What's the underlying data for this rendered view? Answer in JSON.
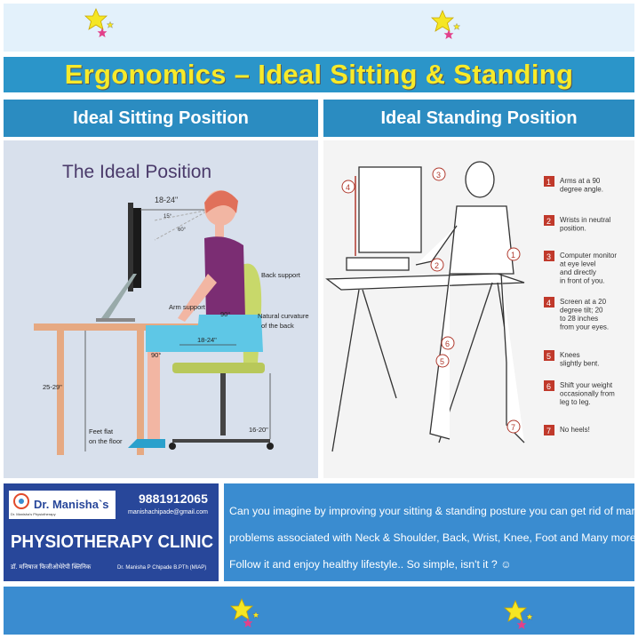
{
  "title": "Ergonomics – Ideal Sitting & Standing",
  "sections": {
    "sitting_header": "Ideal Sitting Position",
    "standing_header": "Ideal Standing Position"
  },
  "sitting": {
    "heading": "The Ideal Position",
    "labels": {
      "monitor_distance": "18-24\"",
      "angle_15": "15°",
      "angle_60": "60°",
      "back_support": "Back support",
      "arm_support": "Arm support",
      "elbow_angle": "90°",
      "natural_curvature_1": "Natural curvature",
      "natural_curvature_2": "of the back",
      "seat_distance": "18-24\"",
      "knee_angle": "90°",
      "desk_height": "25-29\"",
      "feet_flat_1": "Feet flat",
      "feet_flat_2": "on the floor",
      "seat_height": "16-20\""
    }
  },
  "standing": {
    "tips": [
      {
        "num": "1",
        "text": [
          "Arms at a 90",
          "degree angle."
        ]
      },
      {
        "num": "2",
        "text": [
          "Wrists in neutral",
          "position."
        ]
      },
      {
        "num": "3",
        "text": [
          "Computer monitor",
          "at eye level",
          "and directly",
          "in front of you."
        ]
      },
      {
        "num": "4",
        "text": [
          "Screen at a 20",
          "degree tilt; 20",
          "to 28 inches",
          "from your eyes."
        ]
      },
      {
        "num": "5",
        "text": [
          "Knees",
          "slightly bent."
        ]
      },
      {
        "num": "6",
        "text": [
          "Shift your weight",
          "occasionally from",
          "leg to leg."
        ]
      },
      {
        "num": "7",
        "text": [
          "No heels!"
        ]
      }
    ]
  },
  "clinic": {
    "name_top": "Dr. Manisha`s",
    "logo_caption": "Dr. Manisha's Physiotherapy",
    "phone": "9881912065",
    "email": "manishachipade@gmail.com",
    "name_main": "PHYSIOTHERAPY CLINIC",
    "name_marathi": "डॉ. मनिषाज फिजीओथेरेपी क्लिनिक",
    "doctor": "Dr. Manisha P Chipade B.PTh (MIAP)"
  },
  "message": {
    "line1": "Can you imagine by improving your sitting & standing posture you can get rid of many",
    "line2": "problems associated with Neck & Shoulder, Back, Wrist, Knee, Foot and Many more.",
    "line3": "Follow it and enjoy healthy lifestyle.. So simple, isn't it ? ☺"
  },
  "colors": {
    "title_text": "#f7ea2a",
    "band_blue": "#2b95c9",
    "clinic_navy": "#28479a",
    "tip_red": "#c0392b",
    "star_yellow": "#f5e623",
    "star_pink": "#e2408a"
  }
}
